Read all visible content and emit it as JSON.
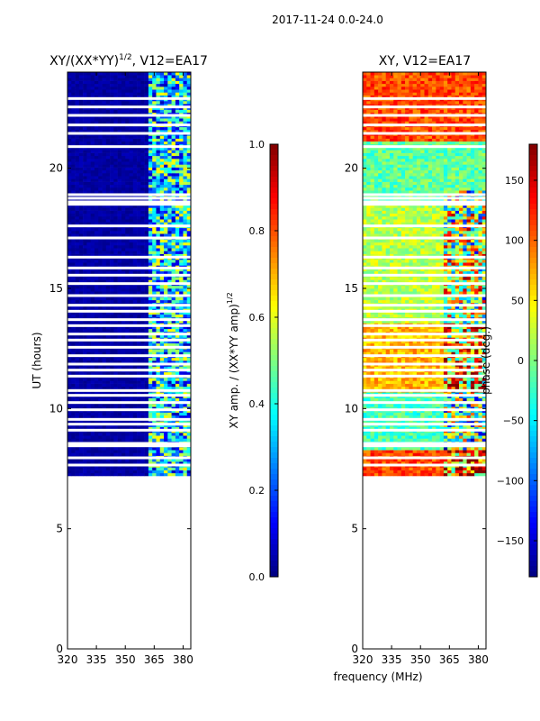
{
  "figure": {
    "suptitle": "2017-11-24 0.0-24.0",
    "shared_xlabel": "frequency (MHz)"
  },
  "colors": {
    "jet": [
      "#00007f",
      "#0000ff",
      "#007fff",
      "#00ffff",
      "#7fff7f",
      "#ffff00",
      "#ff7f00",
      "#ff0000",
      "#7f0000"
    ],
    "axis": "#000000",
    "gap": "#ffffff"
  },
  "chart_data": [
    {
      "type": "heatmap",
      "id": "amp",
      "title": "XY/(XX*YY)",
      "title_superscript": "1/2",
      "title_suffix": ", V12=EA17",
      "xlabel": "",
      "ylabel": "UT (hours)",
      "xlim": [
        320,
        384
      ],
      "ylim": [
        0,
        24
      ],
      "xticks": [
        320,
        335,
        350,
        365,
        380
      ],
      "yticks": [
        0,
        5,
        10,
        15,
        20
      ],
      "data_start_hour": 7.2,
      "white_gap_rows_hours": [
        7.65,
        7.95,
        8.45,
        8.55,
        9.1,
        9.35,
        9.55,
        9.95,
        10.25,
        10.55,
        10.75,
        11.35,
        11.6,
        11.85,
        12.2,
        12.55,
        12.85,
        13.1,
        13.45,
        13.7,
        14.05,
        14.3,
        14.7,
        15.2,
        15.55,
        15.85,
        16.3,
        17.1,
        17.6,
        18.5,
        18.6,
        18.75,
        18.9,
        20.9,
        21.45,
        21.8,
        22.2,
        22.55,
        22.9
      ],
      "bands": [
        {
          "f_start": 320,
          "f_end": 362,
          "typical_value": 0.02
        },
        {
          "f_start": 362,
          "f_end": 384,
          "typical_value": 0.35,
          "notes": "noisy mixed 0.1-0.7"
        }
      ],
      "colorbar": {
        "label": "XY amp. / (XX*YY amp)",
        "label_superscript": "1/2",
        "range": [
          0.0,
          1.0
        ],
        "ticks": [
          "0.0",
          "0.2",
          "0.4",
          "0.6",
          "0.8",
          "1.0"
        ]
      }
    },
    {
      "type": "heatmap",
      "id": "phase",
      "title": "XY, V12=EA17",
      "xlabel": "",
      "ylabel": "",
      "xlim": [
        320,
        384
      ],
      "ylim": [
        0,
        24
      ],
      "xticks": [
        320,
        335,
        350,
        365,
        380
      ],
      "yticks": [
        0,
        5,
        10,
        15,
        20
      ],
      "data_start_hour": 7.2,
      "regions": [
        {
          "h_start": 7.2,
          "h_end": 8.2,
          "phase_deg": 110
        },
        {
          "h_start": 8.2,
          "h_end": 10.6,
          "phase_deg": -20
        },
        {
          "h_start": 10.6,
          "h_end": 13.5,
          "phase_deg": 70
        },
        {
          "h_start": 13.5,
          "h_end": 18.5,
          "phase_deg": 20
        },
        {
          "h_start": 18.5,
          "h_end": 21.0,
          "phase_deg": -10
        },
        {
          "h_start": 21.0,
          "h_end": 24.0,
          "phase_deg": 110
        }
      ],
      "colorbar": {
        "label": "phase (deg.)",
        "range": [
          -180,
          180
        ],
        "ticks": [
          "−150",
          "−100",
          "−50",
          "0",
          "50",
          "100",
          "150"
        ]
      }
    }
  ]
}
